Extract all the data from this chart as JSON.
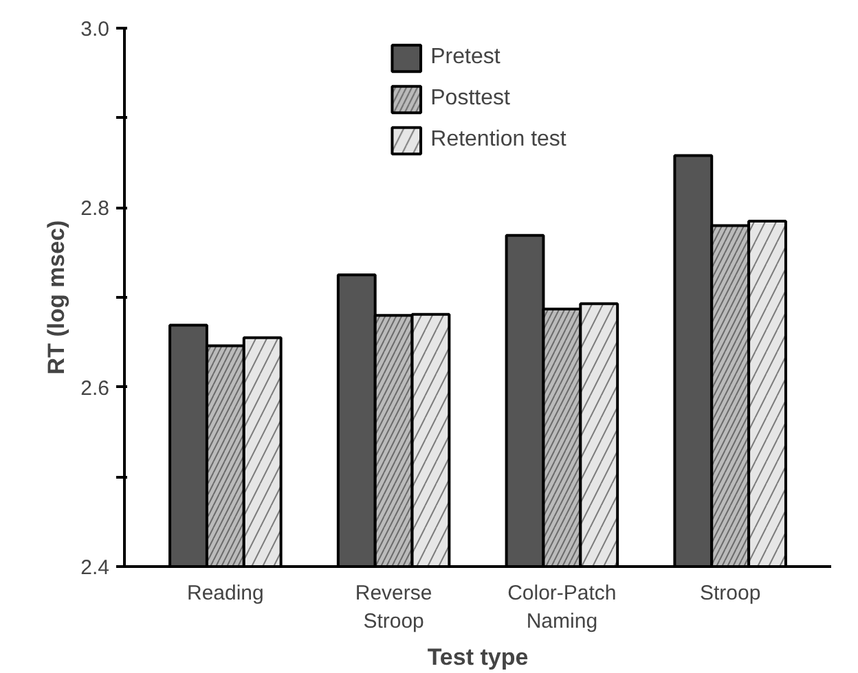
{
  "chart_data": {
    "type": "bar",
    "xlabel": "Test type",
    "ylabel": "RT (log msec)",
    "categories": [
      "Reading",
      "Reverse\nStroop",
      "Color-Patch\nNaming",
      "Stroop"
    ],
    "series": [
      {
        "name": "Pretest",
        "color": "#555555",
        "values": [
          2.669,
          2.725,
          2.769,
          2.858
        ]
      },
      {
        "name": "Posttest",
        "color": "#bbbbbb",
        "values": [
          2.646,
          2.68,
          2.687,
          2.78
        ]
      },
      {
        "name": "Retention test",
        "color": "#e6e6e6",
        "values": [
          2.655,
          2.681,
          2.693,
          2.785
        ]
      }
    ],
    "ylim": [
      2.4,
      3.0
    ],
    "yticks": [
      {
        "value": 2.4,
        "label": "2.4"
      },
      {
        "value": 2.5,
        "label": null
      },
      {
        "value": 2.6,
        "label": "2.6"
      },
      {
        "value": 2.7,
        "label": null
      },
      {
        "value": 2.8,
        "label": "2.8"
      },
      {
        "value": 2.9,
        "label": null
      },
      {
        "value": 3.0,
        "label": "3.0"
      }
    ],
    "grid": false,
    "legend": "top"
  }
}
